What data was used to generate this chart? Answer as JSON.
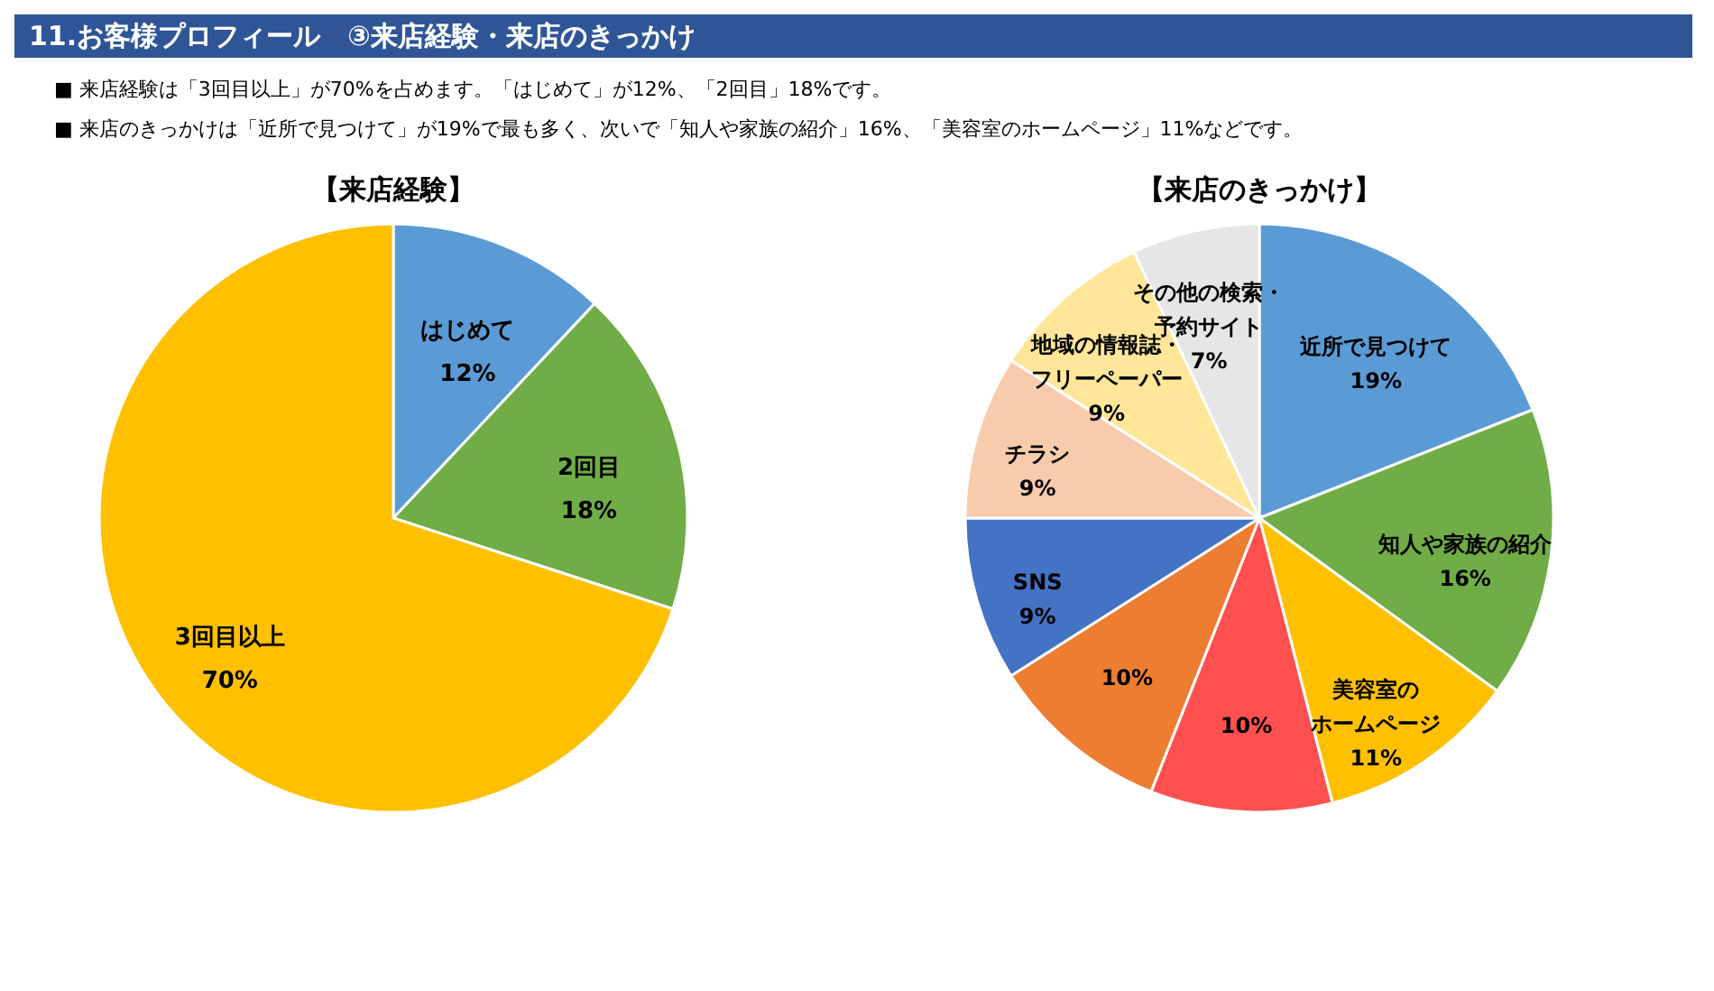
{
  "chart_data": [
    {
      "type": "other",
      "title": "11.お客様プロフィール　③来店経験・来店のきっかけ",
      "annotations": [
        "■ 来店経験は「3回目以上」が70%を占めます。「はじめて」が12%、「2回目」18%です。",
        "■ 来店のきっかけは「近所で見つけて」が19%で最も多く、次いで「知人や家族の紹介」16%、「美容室のホームページ」11%などです。"
      ]
    },
    {
      "type": "pie",
      "title": "【来店経験】",
      "categories": [
        "はじめて",
        "2回目",
        "3回目以上"
      ],
      "values": [
        12,
        18,
        70
      ],
      "value_labels": [
        "12%",
        "18%",
        "70%"
      ],
      "colors": [
        "#5b9bd5",
        "#70ad47",
        "#ffc000"
      ]
    },
    {
      "type": "pie",
      "title": "【来店のきっかけ】",
      "categories": [
        "近所で見つけて",
        "知人や家族の紹介",
        "美容室のホームページ",
        null,
        null,
        "SNS",
        "チラシ",
        "地域の情報誌・フリーペーパー",
        "その他の検索・予約サイト"
      ],
      "values": [
        19,
        16,
        11,
        10,
        10,
        9,
        9,
        9,
        7
      ],
      "value_labels": [
        "19%",
        "16%",
        "11%",
        "10%",
        "10%",
        "9%",
        "9%",
        "9%",
        "7%"
      ],
      "colors": [
        "#5b9bd5",
        "#70ad47",
        "#ffc000",
        "#ff5050",
        "#ed7d31",
        "#4472c4",
        "#f8cbad",
        "#ffe699",
        "#e7e6e6"
      ]
    }
  ]
}
